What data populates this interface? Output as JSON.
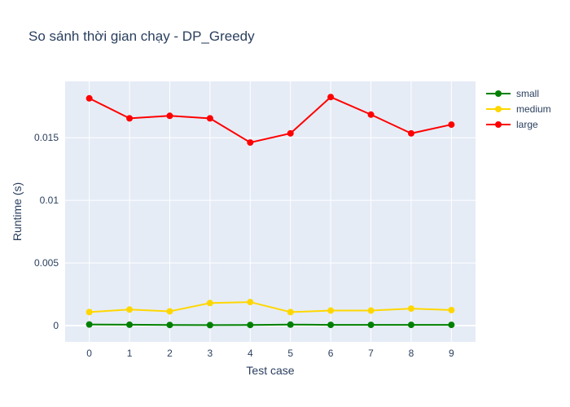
{
  "chart_data": {
    "type": "line",
    "title": "So sánh thời gian chạy - DP_Greedy",
    "xlabel": "Test case",
    "ylabel": "Runtime (s)",
    "x": [
      0,
      1,
      2,
      3,
      4,
      5,
      6,
      7,
      8,
      9
    ],
    "x_ticks": [
      "0",
      "1",
      "2",
      "3",
      "4",
      "5",
      "6",
      "7",
      "8",
      "9"
    ],
    "xlim": [
      -0.6,
      9.6
    ],
    "ylim": [
      -0.0013,
      0.0195
    ],
    "y_ticks": [
      0,
      0.005,
      0.01,
      0.015
    ],
    "y_tick_labels": [
      "0",
      "0.005",
      "0.01",
      "0.015"
    ],
    "grid": true,
    "legend_position": "top-right",
    "background_color": "#e5ecf6",
    "series": [
      {
        "name": "small",
        "color": "#008000",
        "values": [
          9e-05,
          7e-05,
          5e-05,
          4e-05,
          5e-05,
          8e-05,
          6e-05,
          6e-05,
          6e-05,
          6e-05
        ]
      },
      {
        "name": "medium",
        "color": "#ffd700",
        "values": [
          0.00108,
          0.00128,
          0.00114,
          0.0018,
          0.00188,
          0.00108,
          0.0012,
          0.0012,
          0.00136,
          0.00124
        ]
      },
      {
        "name": "large",
        "color": "#ff0000",
        "values": [
          0.01815,
          0.01655,
          0.01675,
          0.01655,
          0.01462,
          0.01535,
          0.01825,
          0.01685,
          0.01535,
          0.01605
        ]
      }
    ]
  }
}
